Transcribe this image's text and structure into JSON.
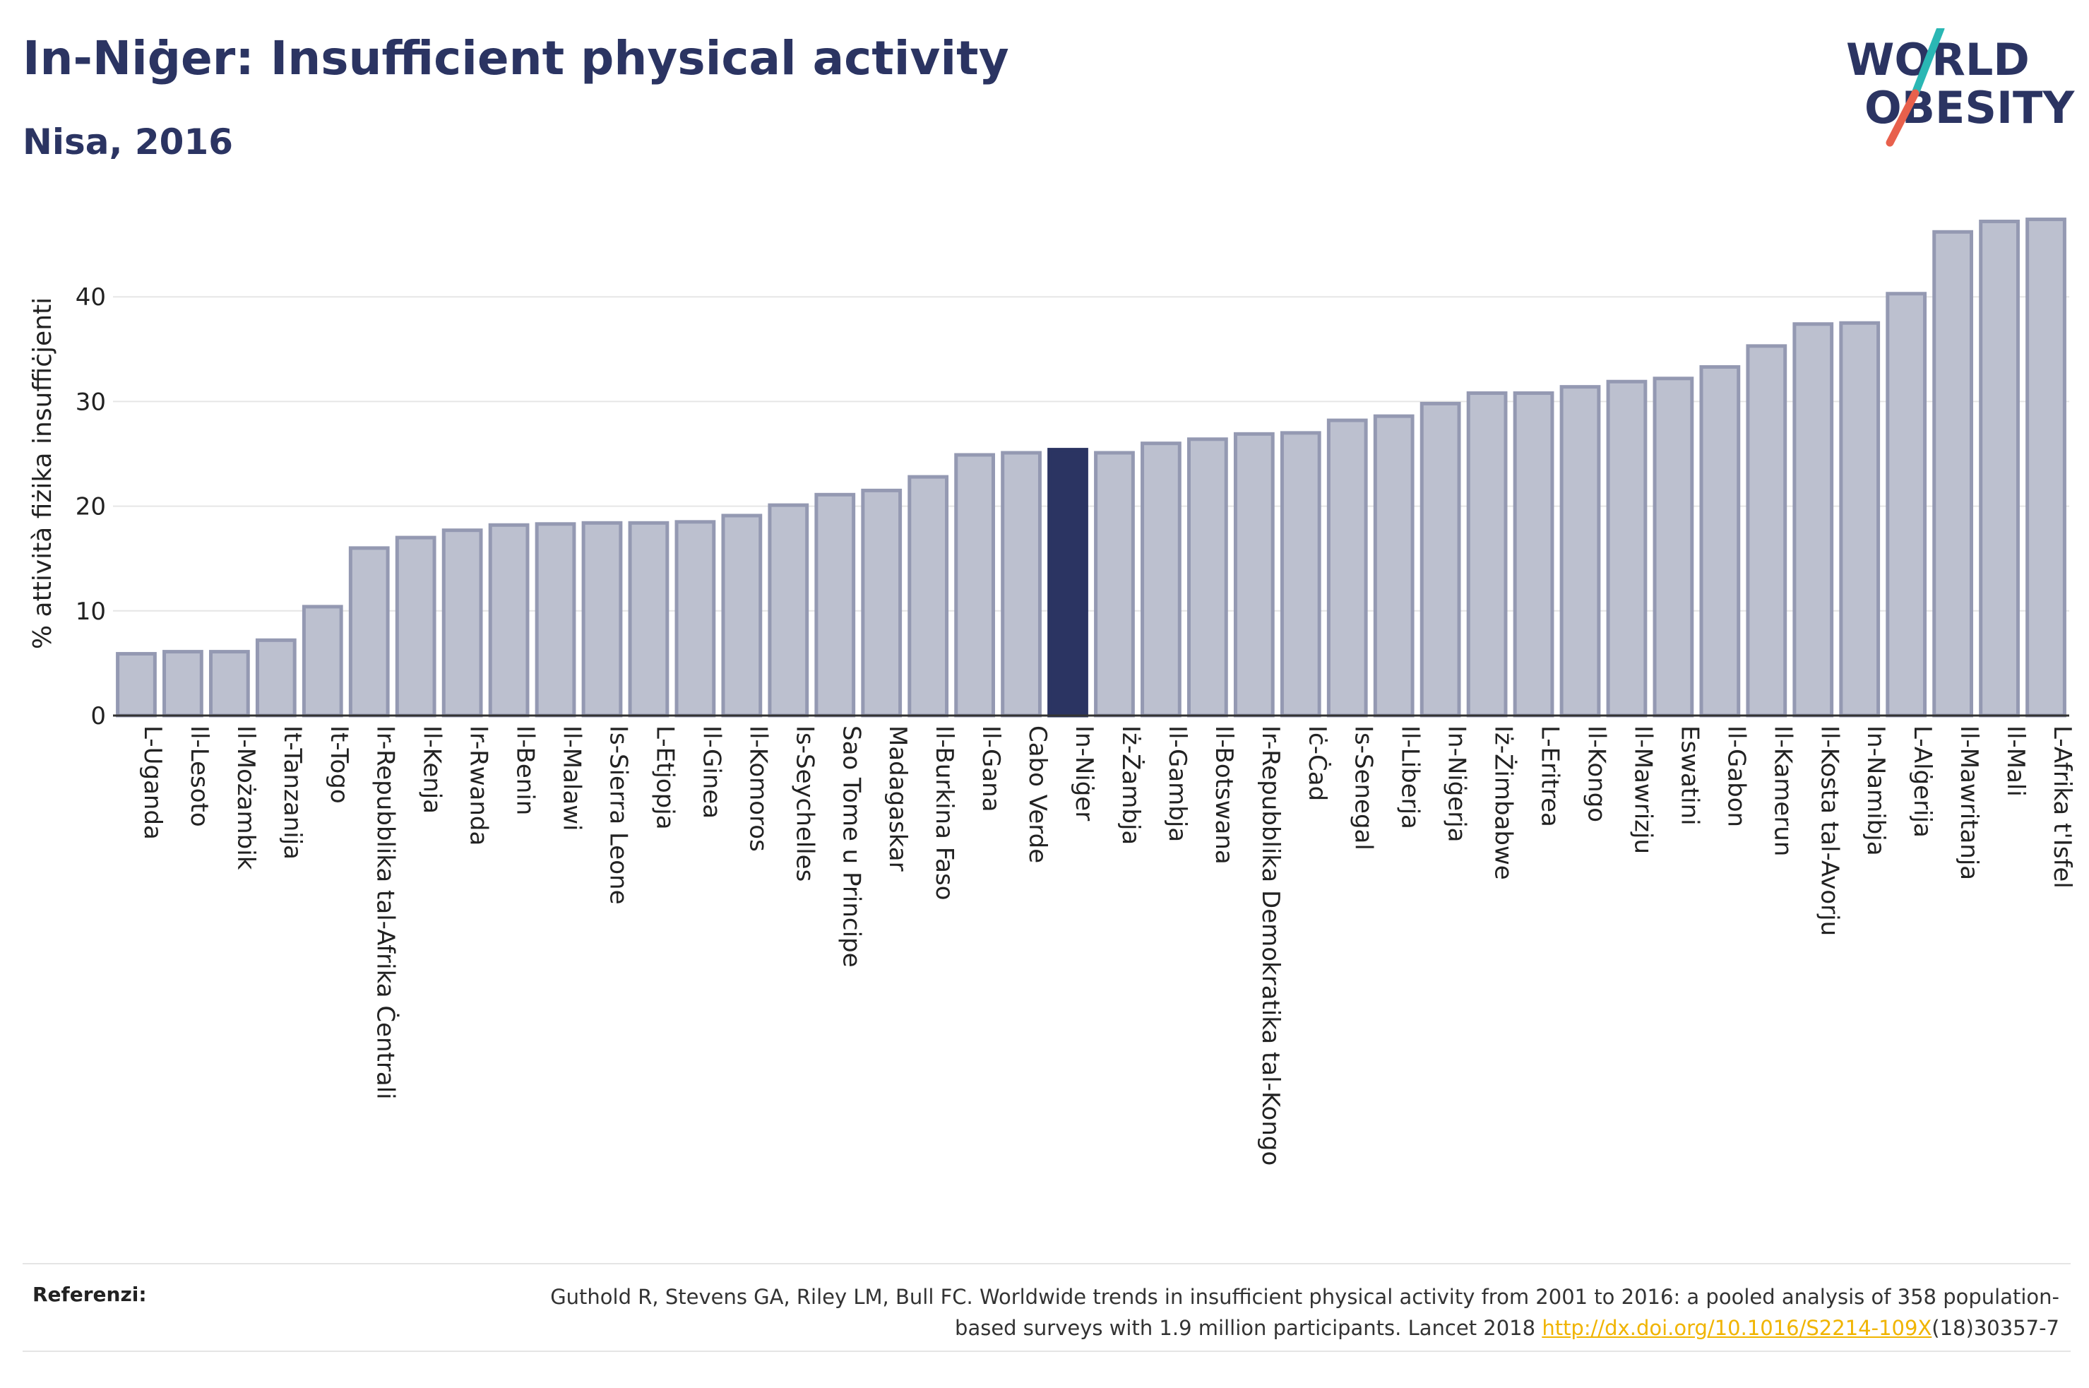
{
  "header": {
    "title": "In-Niġer: Insufficient physical activity",
    "subtitle": "Nisa, 2016"
  },
  "logo": {
    "line1": "WORLD",
    "line2": "OBESITY",
    "colors": {
      "text": "#2b3462",
      "slash_top": "#2ab7b4",
      "slash_bottom": "#e8604c"
    }
  },
  "chart_data": {
    "type": "bar",
    "ylabel": "% attività fiżika insuffiċjenti",
    "ylim": [
      0,
      48
    ],
    "yticks": [
      0,
      10,
      20,
      30,
      40
    ],
    "grid": true,
    "highlight": "In-Niġer",
    "colors": {
      "bar": "#bcc0cf",
      "bar_edge": "#9499b2",
      "highlight": "#2b3462"
    },
    "categories": [
      "L-Uganda",
      "Il-Lesoto",
      "Il-Możambik",
      "It-Tanzanija",
      "It-Togo",
      "Ir-Repubblika tal-Afrika Ċentrali",
      "Il-Kenja",
      "Ir-Rwanda",
      "Il-Benin",
      "Il-Malawi",
      "Is-Sierra Leone",
      "L-Etjopja",
      "Il-Ginea",
      "Il-Komoros",
      "Is-Seychelles",
      "Sao Tome u Principe",
      "Madagaskar",
      "Il-Burkina Faso",
      "Il-Gana",
      "Cabo Verde",
      "In-Niġer",
      "Iż-Żambja",
      "Il-Gambja",
      "Il-Botswana",
      "Ir-Repubblika Demokratika tal-Kongo",
      "Iċ-Ċad",
      "Is-Senegal",
      "Il-Liberja",
      "In-Niġerja",
      "Iż-Żimbabwe",
      "L-Eritrea",
      "Il-Kongo",
      "Il-Mawrizju",
      "Eswatini",
      "Il-Gabon",
      "Il-Kamerun",
      "Il-Kosta tal-Avorju",
      "In-Namibja",
      "L-Alġerija",
      "Il-Mawritanja",
      "Il-Mali",
      "L-Afrika t'Isfel"
    ],
    "values": [
      5.9,
      6.1,
      6.1,
      7.2,
      10.4,
      16.0,
      17.0,
      17.7,
      18.2,
      18.3,
      18.4,
      18.4,
      18.5,
      19.1,
      20.1,
      21.1,
      21.5,
      22.8,
      24.9,
      25.1,
      25.4,
      25.1,
      26.0,
      26.4,
      26.9,
      27.0,
      28.2,
      28.6,
      29.8,
      30.8,
      30.8,
      31.4,
      31.9,
      32.2,
      33.3,
      35.3,
      37.4,
      37.5,
      40.3,
      46.2,
      47.2,
      47.4
    ]
  },
  "references": {
    "label": "Referenzi:",
    "text_before": "Guthold R, Stevens GA, Riley LM, Bull FC. Worldwide trends in insufficient physical activity from 2001 to 2016: a pooled analysis of 358 population-based surveys with 1.9 million participants. Lancet 2018 ",
    "link": "http://dx.doi.org/10.1016/S2214-109X",
    "text_after": "(18)30357-7"
  }
}
